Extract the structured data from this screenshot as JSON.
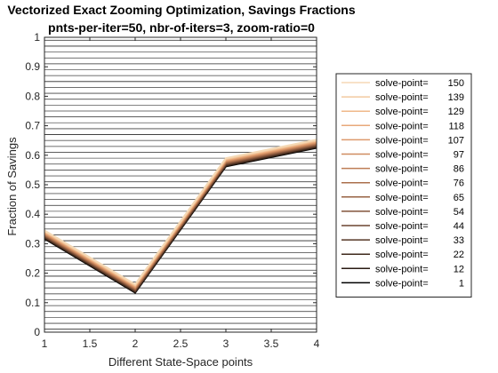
{
  "chart_data": {
    "type": "line",
    "title": "Vectorized Exact Zooming Optimization, Savings Fractions",
    "subtitle": "pnts-per-iter=50, nbr-of-iters=3, zoom-ratio=0",
    "xlabel": "Different State-Space points",
    "ylabel": "Fraction of Savings",
    "xlim": [
      1,
      4
    ],
    "ylim": [
      0,
      1
    ],
    "xticks": [
      "1",
      "1.5",
      "2",
      "2.5",
      "3",
      "3.5",
      "4"
    ],
    "yticks": [
      "0",
      "0.1",
      "0.2",
      "0.3",
      "0.4",
      "0.5",
      "0.6",
      "0.7",
      "0.8",
      "0.9",
      "1"
    ],
    "legend_position": "right-outside",
    "x": [
      1,
      2,
      3,
      4
    ],
    "series": [
      {
        "name": "solve-point=",
        "value_label": "150",
        "color": "#f5d9b5",
        "values": [
          0.345,
          0.162,
          0.59,
          0.653
        ]
      },
      {
        "name": "solve-point=",
        "value_label": "139",
        "color": "#f2c9a0",
        "values": [
          0.343,
          0.16,
          0.588,
          0.651
        ]
      },
      {
        "name": "solve-point=",
        "value_label": "129",
        "color": "#f0b98a",
        "values": [
          0.341,
          0.158,
          0.586,
          0.649
        ]
      },
      {
        "name": "solve-point=",
        "value_label": "118",
        "color": "#e8a97a",
        "values": [
          0.339,
          0.156,
          0.584,
          0.647
        ]
      },
      {
        "name": "solve-point=",
        "value_label": "107",
        "color": "#dd9a6c",
        "values": [
          0.337,
          0.154,
          0.582,
          0.645
        ]
      },
      {
        "name": "solve-point=",
        "value_label": "97",
        "color": "#cf8c60",
        "values": [
          0.335,
          0.152,
          0.58,
          0.643
        ]
      },
      {
        "name": "solve-point=",
        "value_label": "86",
        "color": "#be7e56",
        "values": [
          0.333,
          0.15,
          0.578,
          0.641
        ]
      },
      {
        "name": "solve-point=",
        "value_label": "76",
        "color": "#ab704c",
        "values": [
          0.331,
          0.148,
          0.576,
          0.639
        ]
      },
      {
        "name": "solve-point=",
        "value_label": "65",
        "color": "#976243",
        "values": [
          0.329,
          0.146,
          0.574,
          0.637
        ]
      },
      {
        "name": "solve-point=",
        "value_label": "54",
        "color": "#82533a",
        "values": [
          0.327,
          0.144,
          0.572,
          0.635
        ]
      },
      {
        "name": "solve-point=",
        "value_label": "44",
        "color": "#6c4530",
        "values": [
          0.325,
          0.142,
          0.57,
          0.633
        ]
      },
      {
        "name": "solve-point=",
        "value_label": "33",
        "color": "#563726",
        "values": [
          0.323,
          0.14,
          0.568,
          0.631
        ]
      },
      {
        "name": "solve-point=",
        "value_label": "22",
        "color": "#3f291c",
        "values": [
          0.321,
          0.138,
          0.566,
          0.629
        ]
      },
      {
        "name": "solve-point=",
        "value_label": "12",
        "color": "#281a12",
        "values": [
          0.319,
          0.136,
          0.564,
          0.627
        ]
      },
      {
        "name": "solve-point=",
        "value_label": "1",
        "color": "#000000",
        "values": [
          0.317,
          0.134,
          0.562,
          0.625
        ]
      }
    ]
  }
}
